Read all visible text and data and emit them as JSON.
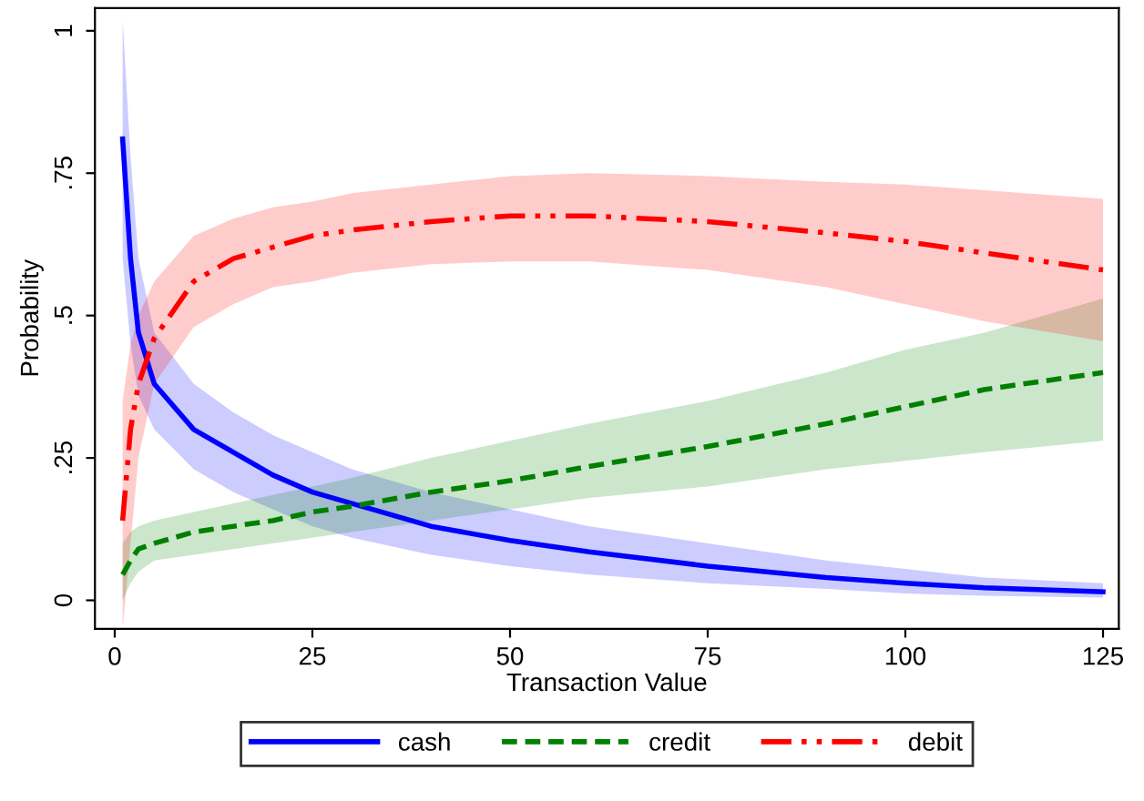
{
  "chart_data": {
    "type": "line",
    "xlabel": "Transaction Value",
    "ylabel": "Probability",
    "x": [
      1,
      2,
      3,
      5,
      10,
      15,
      20,
      25,
      30,
      40,
      50,
      60,
      75,
      90,
      100,
      110,
      125
    ],
    "series": [
      {
        "name": "cash",
        "color": "#0000ff",
        "line_style": "solid",
        "values": [
          0.81,
          0.6,
          0.47,
          0.38,
          0.3,
          0.26,
          0.22,
          0.19,
          0.17,
          0.13,
          0.105,
          0.085,
          0.06,
          0.04,
          0.03,
          0.022,
          0.015
        ],
        "lower": [
          0.6,
          0.45,
          0.36,
          0.3,
          0.23,
          0.19,
          0.16,
          0.13,
          0.11,
          0.08,
          0.06,
          0.045,
          0.03,
          0.02,
          0.012,
          0.008,
          0.005
        ],
        "upper": [
          1.02,
          0.78,
          0.6,
          0.47,
          0.38,
          0.33,
          0.29,
          0.26,
          0.23,
          0.19,
          0.16,
          0.13,
          0.1,
          0.07,
          0.055,
          0.04,
          0.03
        ]
      },
      {
        "name": "credit",
        "color": "#008000",
        "line_style": "dashed",
        "values": [
          0.045,
          0.07,
          0.09,
          0.1,
          0.12,
          0.13,
          0.14,
          0.155,
          0.165,
          0.19,
          0.21,
          0.235,
          0.27,
          0.31,
          0.34,
          0.37,
          0.4
        ],
        "lower": [
          0.0,
          0.03,
          0.05,
          0.07,
          0.08,
          0.09,
          0.1,
          0.11,
          0.12,
          0.14,
          0.16,
          0.18,
          0.2,
          0.23,
          0.245,
          0.26,
          0.28
        ],
        "upper": [
          0.1,
          0.12,
          0.13,
          0.14,
          0.155,
          0.17,
          0.185,
          0.2,
          0.215,
          0.25,
          0.28,
          0.31,
          0.35,
          0.4,
          0.44,
          0.47,
          0.53
        ]
      },
      {
        "name": "debit",
        "color": "#ff0000",
        "line_style": "dashdot",
        "values": [
          0.14,
          0.3,
          0.38,
          0.46,
          0.56,
          0.6,
          0.62,
          0.64,
          0.65,
          0.665,
          0.675,
          0.675,
          0.665,
          0.645,
          0.63,
          0.61,
          0.58
        ],
        "lower": [
          -0.05,
          0.1,
          0.25,
          0.38,
          0.48,
          0.52,
          0.55,
          0.56,
          0.575,
          0.59,
          0.595,
          0.595,
          0.58,
          0.55,
          0.52,
          0.49,
          0.455
        ],
        "upper": [
          0.35,
          0.45,
          0.5,
          0.56,
          0.64,
          0.67,
          0.69,
          0.7,
          0.715,
          0.73,
          0.745,
          0.75,
          0.745,
          0.735,
          0.73,
          0.72,
          0.705
        ]
      }
    ],
    "xlim": [
      -2.5,
      127
    ],
    "ylim": [
      -0.05,
      1.04
    ],
    "xticks": [
      0,
      25,
      50,
      75,
      100,
      125
    ],
    "yticks": [
      {
        "value": 0,
        "label": "0"
      },
      {
        "value": 0.25,
        "label": ".25"
      },
      {
        "value": 0.5,
        "label": ".5"
      },
      {
        "value": 0.75,
        "label": ".75"
      },
      {
        "value": 1,
        "label": "1"
      }
    ],
    "legend": "bottom",
    "grid": false,
    "marker": "none"
  }
}
